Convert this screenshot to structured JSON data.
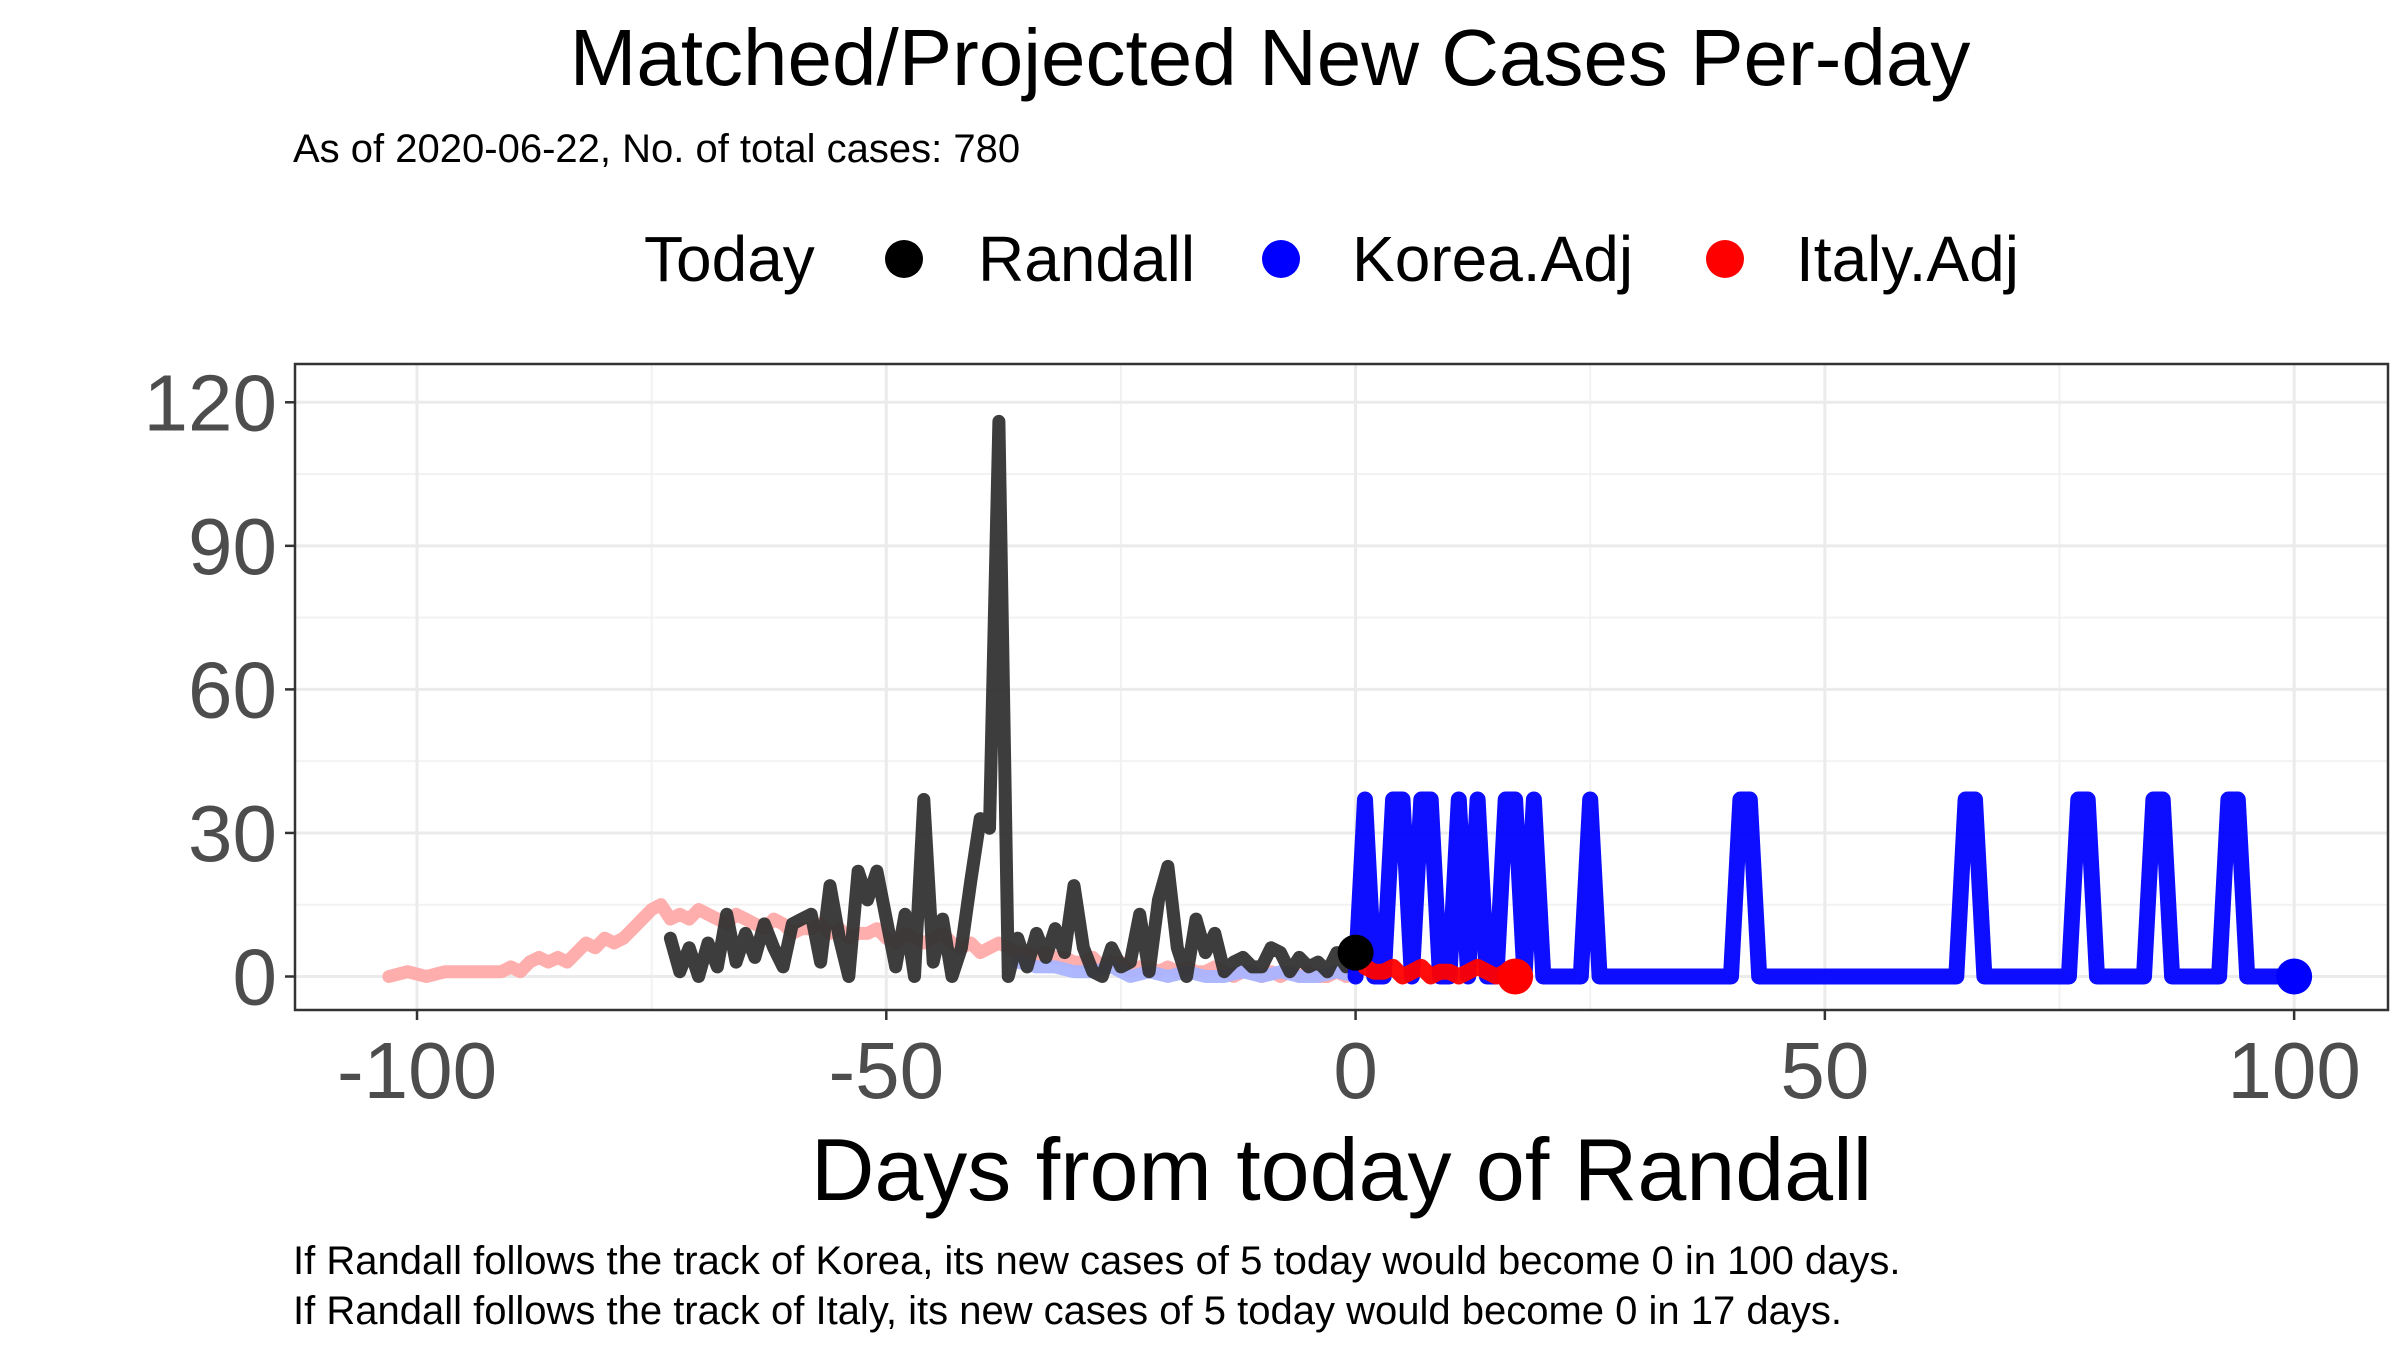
{
  "chart_data": {
    "type": "line",
    "title": "Matched/Projected New Cases Per-day",
    "subtitle": "As of 2020-06-22, No. of total cases: 780",
    "xlabel": "Days from today of Randall",
    "ylabel": "",
    "xlim": [
      -113,
      110
    ],
    "ylim": [
      -7,
      128
    ],
    "x_ticks": [
      -100,
      -50,
      0,
      50,
      100
    ],
    "x_tick_labels": [
      "-100",
      "-50",
      "0",
      "50",
      "100"
    ],
    "y_ticks": [
      0,
      30,
      60,
      90,
      120
    ],
    "y_tick_labels": [
      "0",
      "30",
      "60",
      "90",
      "120"
    ],
    "grid": true,
    "legend": {
      "title": "Today",
      "position": "top",
      "items": [
        {
          "label": "Randall",
          "color": "#000000"
        },
        {
          "label": "Korea.Adj",
          "color": "#0000ff"
        },
        {
          "label": "Italy.Adj",
          "color": "#ff0000"
        }
      ]
    },
    "series": [
      {
        "name": "Italy.Adj",
        "segment": "past",
        "color": "#ffaaaa",
        "x": [
          -103,
          -101,
          -99,
          -97,
          -95,
          -93,
          -91,
          -90,
          -89,
          -88,
          -87,
          -86,
          -85,
          -84,
          -83,
          -82,
          -81,
          -80,
          -79,
          -78,
          -77,
          -76,
          -75,
          -74,
          -73,
          -72,
          -71,
          -70,
          -69,
          -68,
          -67,
          -66,
          -65,
          -64,
          -63,
          -62,
          -61,
          -60,
          -59,
          -58,
          -57,
          -56,
          -55,
          -54,
          -53,
          -52,
          -51,
          -50,
          -49,
          -48,
          -47,
          -46,
          -45,
          -44,
          -43,
          -42,
          -41,
          -40,
          -39,
          -38,
          -37,
          -36,
          -35,
          -34,
          -33,
          -32,
          -31,
          -30,
          -29,
          -28,
          -27,
          -26,
          -25,
          -24,
          -23,
          -22,
          -21,
          -20,
          -19,
          -18,
          -17,
          -16,
          -15,
          -14,
          -13,
          -12,
          -11,
          -10,
          -9,
          -8,
          -7,
          -6,
          -5,
          -4,
          -3,
          -2,
          -1,
          0
        ],
        "y": [
          0,
          1,
          0,
          1,
          1,
          1,
          1,
          2,
          1,
          3,
          4,
          3,
          4,
          3,
          5,
          7,
          6,
          8,
          7,
          8,
          10,
          12,
          14,
          15,
          12,
          13,
          12,
          14,
          13,
          12,
          11,
          13,
          12,
          11,
          10,
          12,
          11,
          9,
          10,
          10,
          11,
          9,
          10,
          8,
          9,
          9,
          10,
          8,
          7,
          9,
          8,
          7,
          8,
          9,
          7,
          6,
          7,
          5,
          6,
          7,
          6,
          5,
          5,
          4,
          5,
          4,
          4,
          3,
          3,
          4,
          2,
          3,
          3,
          1,
          2,
          2,
          1,
          2,
          1,
          2,
          1,
          1,
          2,
          1,
          0,
          1,
          1,
          0,
          1,
          0,
          1,
          0,
          1,
          0,
          0,
          1,
          0,
          1
        ]
      },
      {
        "name": "Korea.Adj",
        "segment": "past",
        "color": "#aab4ff",
        "x": [
          -36,
          -34,
          -32,
          -30,
          -28,
          -26,
          -24,
          -22,
          -20,
          -18,
          -16,
          -14,
          -12,
          -10,
          -8,
          -6,
          -4,
          -2,
          0
        ],
        "y": [
          3,
          2,
          2,
          1,
          1,
          2,
          0,
          1,
          0,
          1,
          0,
          0,
          1,
          0,
          1,
          0,
          0,
          1,
          0
        ]
      },
      {
        "name": "Randall",
        "segment": "past",
        "color": "#333333",
        "x": [
          -73,
          -72,
          -71,
          -70,
          -69,
          -68,
          -67,
          -66,
          -65,
          -64,
          -63,
          -62,
          -61,
          -60,
          -59,
          -58,
          -57,
          -56,
          -55,
          -54,
          -53,
          -52,
          -51,
          -50,
          -49,
          -48,
          -47,
          -46,
          -45,
          -44,
          -43,
          -42,
          -41,
          -40,
          -39,
          -38,
          -37,
          -36,
          -35,
          -34,
          -33,
          -32,
          -31,
          -30,
          -29,
          -28,
          -27,
          -26,
          -25,
          -24,
          -23,
          -22,
          -21,
          -20,
          -19,
          -18,
          -17,
          -16,
          -15,
          -14,
          -13,
          -12,
          -11,
          -10,
          -9,
          -8,
          -7,
          -6,
          -5,
          -4,
          -3,
          -2,
          -1,
          0
        ],
        "y": [
          8,
          1,
          6,
          0,
          7,
          2,
          13,
          3,
          9,
          4,
          11,
          6,
          2,
          11,
          12,
          13,
          3,
          19,
          8,
          0,
          22,
          16,
          22,
          12,
          2,
          13,
          0,
          37,
          3,
          12,
          0,
          6,
          20,
          33,
          31,
          116,
          0,
          8,
          2,
          9,
          4,
          10,
          5,
          19,
          6,
          1,
          0,
          6,
          2,
          3,
          13,
          1,
          16,
          23,
          6,
          0,
          12,
          5,
          9,
          1,
          3,
          4,
          2,
          2,
          6,
          5,
          1,
          4,
          2,
          3,
          1,
          5,
          2,
          5
        ]
      },
      {
        "name": "Korea.Adj",
        "segment": "projected",
        "color": "#0000ff",
        "x": [
          0,
          1,
          2,
          3,
          4,
          5,
          6,
          7,
          8,
          9,
          10,
          11,
          12,
          13,
          14,
          15,
          16,
          17,
          18,
          19,
          20,
          21,
          24,
          25,
          26,
          27,
          40,
          41,
          42,
          43,
          44,
          64,
          65,
          66,
          67,
          68,
          76,
          77,
          78,
          79,
          80,
          84,
          85,
          86,
          87,
          88,
          92,
          93,
          94,
          95,
          96,
          99,
          100
        ],
        "y": [
          0,
          37,
          0,
          0,
          37,
          37,
          0,
          37,
          37,
          0,
          0,
          37,
          0,
          37,
          0,
          0,
          37,
          37,
          0,
          37,
          0,
          0,
          0,
          37,
          0,
          0,
          0,
          37,
          37,
          0,
          0,
          0,
          37,
          37,
          0,
          0,
          0,
          37,
          37,
          0,
          0,
          0,
          37,
          37,
          0,
          0,
          0,
          37,
          37,
          0,
          0,
          0,
          0
        ]
      },
      {
        "name": "Italy.Adj",
        "segment": "projected",
        "color": "#ff0000",
        "x": [
          0,
          1,
          2,
          3,
          4,
          5,
          6,
          7,
          8,
          9,
          10,
          11,
          12,
          13,
          14,
          15,
          16,
          17
        ],
        "y": [
          5,
          2,
          1,
          1,
          2,
          0,
          1,
          2,
          0,
          1,
          1,
          0,
          1,
          2,
          1,
          0,
          1,
          0
        ]
      }
    ],
    "today_point": {
      "label": "Randall",
      "x": 0,
      "y": 5,
      "color": "#000000"
    },
    "end_points": [
      {
        "label": "Korea.Adj",
        "x": 100,
        "y": 0,
        "color": "#0000ff"
      },
      {
        "label": "Italy.Adj",
        "x": 17,
        "y": 0,
        "color": "#ff0000"
      }
    ]
  },
  "captions": [
    "If Randall follows the track of Korea, its new cases of 5 today would become 0 in 100 days.",
    "If Randall follows the track of Italy, its new cases of 5 today would become 0 in 17 days."
  ]
}
